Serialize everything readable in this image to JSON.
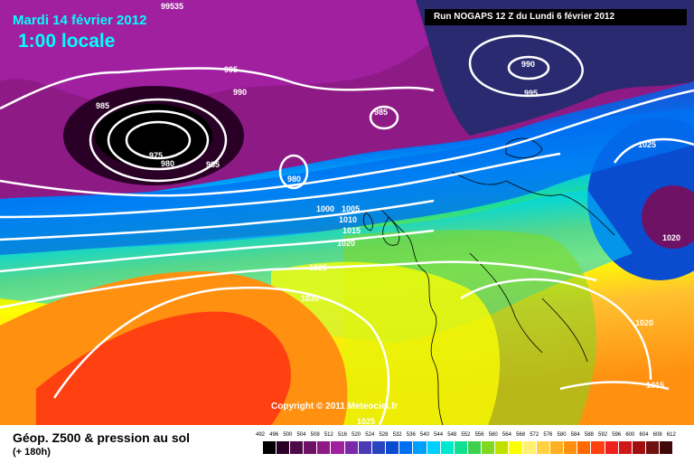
{
  "header": {
    "date": "Mardi 14 février 2012",
    "time": "1:00 locale",
    "run": "Run NOGAPS 12 Z du Lundi 6 février 2012"
  },
  "copyright": "Copyright © 2011 Meteociel.fr",
  "legend": {
    "title": "Géop. Z500 & pression au sol",
    "subtitle": "(+ 180h)",
    "ticks": [
      "492",
      "496",
      "500",
      "504",
      "508",
      "512",
      "516",
      "520",
      "524",
      "528",
      "532",
      "536",
      "540",
      "544",
      "548",
      "552",
      "556",
      "560",
      "564",
      "568",
      "572",
      "576",
      "580",
      "584",
      "588",
      "592",
      "596",
      "600",
      "604",
      "608",
      "612"
    ],
    "colors": [
      "#000000",
      "#2a0026",
      "#4d0a46",
      "#6e1266",
      "#8e1a86",
      "#a020a0",
      "#7a2aa8",
      "#4a3ab4",
      "#2a44c0",
      "#0a4cd0",
      "#0070f0",
      "#00a0ff",
      "#00d0ff",
      "#00e8d0",
      "#10e090",
      "#40d050",
      "#80d820",
      "#c0e000",
      "#ffff00",
      "#fff070",
      "#ffd040",
      "#ffb020",
      "#ff9010",
      "#ff6a00",
      "#ff4010",
      "#f02020",
      "#d01818",
      "#a01010",
      "#701010",
      "#400808"
    ]
  },
  "isobars": [
    "99535",
    "995",
    "990",
    "985",
    "975",
    "980",
    "985",
    "985",
    "980",
    "990",
    "995",
    "1000",
    "1005",
    "1010",
    "1015",
    "1020",
    "1025",
    "1030",
    "1025",
    "1020",
    "1020",
    "1015",
    "1025"
  ]
}
